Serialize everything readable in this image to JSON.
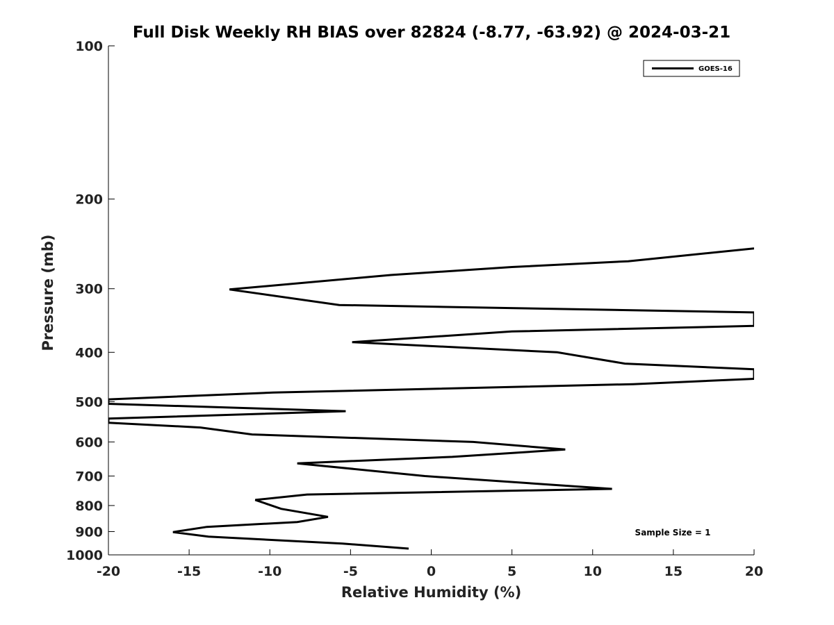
{
  "chart_data": {
    "type": "line",
    "title": "Full Disk Weekly RH BIAS over 82824 (-8.77, -63.92) @ 2024-03-21",
    "xlabel": "Relative Humidity (%)",
    "ylabel": "Pressure (mb)",
    "xlim": [
      -20,
      20
    ],
    "ylim": [
      100,
      1000
    ],
    "y_scale": "log",
    "y_inverted": true,
    "grid": false,
    "legend_position": "top-right",
    "xticks": [
      -20,
      -15,
      -10,
      -5,
      0,
      5,
      10,
      15,
      20
    ],
    "xtick_labels": [
      "-20",
      "-15",
      "-10",
      "-5",
      "0",
      "5",
      "10",
      "15",
      "20"
    ],
    "yticks": [
      100,
      200,
      300,
      400,
      500,
      600,
      700,
      800,
      900,
      1000
    ],
    "ytick_labels": [
      "100",
      "200",
      "300",
      "400",
      "500",
      "600",
      "700",
      "800",
      "900",
      "1000"
    ],
    "series": [
      {
        "name": "GOES-16",
        "color": "#000000",
        "points": [
          {
            "x": 20,
            "y": 250
          },
          {
            "x": 12.2,
            "y": 265
          },
          {
            "x": 5,
            "y": 272
          },
          {
            "x": -2.5,
            "y": 282
          },
          {
            "x": -12.5,
            "y": 301
          },
          {
            "x": -5.7,
            "y": 323
          },
          {
            "x": 20,
            "y": 334
          },
          {
            "x": 20,
            "y": 355
          },
          {
            "x": 5,
            "y": 364
          },
          {
            "x": -4.9,
            "y": 382
          },
          {
            "x": 7.8,
            "y": 400
          },
          {
            "x": 12,
            "y": 421
          },
          {
            "x": 20,
            "y": 432
          },
          {
            "x": 20,
            "y": 451
          },
          {
            "x": 12.5,
            "y": 462
          },
          {
            "x": -9.8,
            "y": 480
          },
          {
            "x": -20,
            "y": 495
          },
          {
            "x": -20,
            "y": 505
          },
          {
            "x": -5.3,
            "y": 522
          },
          {
            "x": -20,
            "y": 540
          },
          {
            "x": -20,
            "y": 550
          },
          {
            "x": -14.3,
            "y": 562
          },
          {
            "x": -11.1,
            "y": 580
          },
          {
            "x": 2.6,
            "y": 600
          },
          {
            "x": 8.3,
            "y": 621
          },
          {
            "x": 1.3,
            "y": 642
          },
          {
            "x": -8.3,
            "y": 661
          },
          {
            "x": -0.4,
            "y": 700
          },
          {
            "x": 11.2,
            "y": 742
          },
          {
            "x": -7.7,
            "y": 761
          },
          {
            "x": -10.9,
            "y": 780
          },
          {
            "x": -9.3,
            "y": 812
          },
          {
            "x": -6.4,
            "y": 842
          },
          {
            "x": -8.3,
            "y": 862
          },
          {
            "x": -13.9,
            "y": 881
          },
          {
            "x": -16,
            "y": 902
          },
          {
            "x": -13.8,
            "y": 921
          },
          {
            "x": -5.5,
            "y": 950
          },
          {
            "x": -1.4,
            "y": 972
          }
        ]
      }
    ],
    "annotations": [
      "Sample Size = 1"
    ]
  }
}
